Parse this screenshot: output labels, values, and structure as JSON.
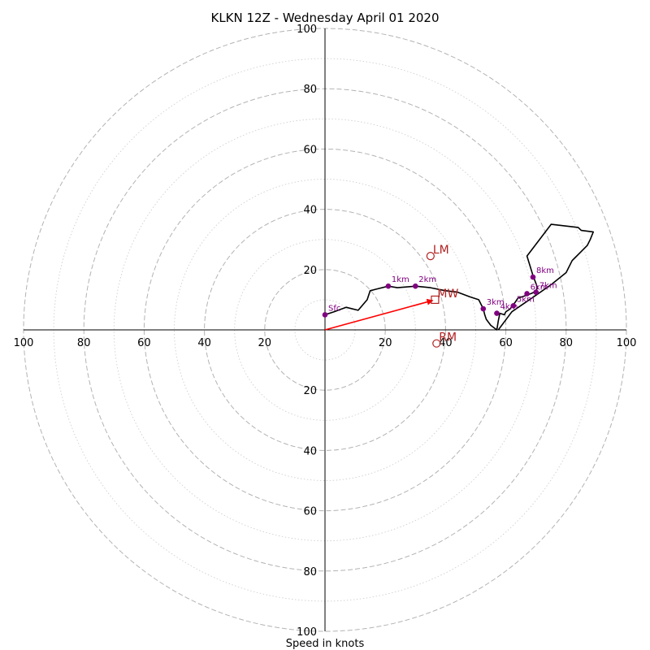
{
  "chart_data": {
    "type": "scatter",
    "title": "KLKN 12Z - Wednesday April 01 2020",
    "xlabel": "Speed in knots",
    "ylabel": "",
    "xlim": [
      -100,
      100
    ],
    "ylim": [
      -100,
      100
    ],
    "grid": true,
    "ring_major": [
      20,
      40,
      60,
      80,
      100
    ],
    "ring_minor": [
      10,
      30,
      50,
      70,
      90
    ],
    "x_tick_labels": [
      "100",
      "80",
      "60",
      "40",
      "20",
      "20",
      "40",
      "60",
      "80",
      "100"
    ],
    "y_tick_labels": [
      "100",
      "80",
      "60",
      "40",
      "20",
      "20",
      "40",
      "60",
      "80",
      "100"
    ],
    "colors": {
      "trace": "#000000",
      "height_points": "#800080",
      "motion": "#b22222",
      "mean_wind_vector": "#ff0000"
    },
    "hodograph_trace": [
      [
        0,
        5
      ],
      [
        3,
        6
      ],
      [
        7,
        7.5
      ],
      [
        11,
        6.5
      ],
      [
        14,
        10
      ],
      [
        15,
        13
      ],
      [
        17,
        13.5
      ],
      [
        21,
        14.5
      ],
      [
        24,
        14
      ],
      [
        30,
        14.5
      ],
      [
        35,
        14
      ],
      [
        40,
        13
      ],
      [
        44,
        12.5
      ],
      [
        48,
        11
      ],
      [
        51,
        10
      ],
      [
        52.5,
        7
      ],
      [
        53,
        5
      ],
      [
        53.5,
        3.5
      ],
      [
        55,
        1.5
      ],
      [
        57,
        0
      ],
      [
        57.5,
        3
      ],
      [
        58,
        5.5
      ],
      [
        59.5,
        5
      ],
      [
        60,
        6
      ],
      [
        61.5,
        7
      ],
      [
        62,
        8
      ],
      [
        63,
        9
      ],
      [
        64,
        10.5
      ],
      [
        67,
        11.5
      ],
      [
        69.5,
        12.5
      ],
      [
        70,
        13
      ],
      [
        70.5,
        14
      ],
      [
        69,
        18
      ],
      [
        67,
        24.5
      ],
      [
        75,
        35
      ],
      [
        84,
        34
      ],
      [
        85,
        33
      ],
      [
        89,
        32.5
      ],
      [
        88,
        30
      ],
      [
        87,
        28
      ],
      [
        85.5,
        26.5
      ],
      [
        84,
        25
      ],
      [
        83,
        24
      ],
      [
        82,
        23
      ],
      [
        80,
        19
      ],
      [
        75,
        15
      ],
      [
        70,
        11.5
      ],
      [
        62,
        6
      ],
      [
        57.5,
        0
      ]
    ],
    "height_points": [
      {
        "label": "Sfc",
        "x": 0,
        "y": 5
      },
      {
        "label": "1km",
        "x": 21,
        "y": 14.5
      },
      {
        "label": "2km",
        "x": 30,
        "y": 14.5
      },
      {
        "label": "3km",
        "x": 52.5,
        "y": 7
      },
      {
        "label": "4km",
        "x": 57,
        "y": 5.5
      },
      {
        "label": "5km",
        "x": 62.5,
        "y": 8
      },
      {
        "label": "6km",
        "x": 67,
        "y": 12
      },
      {
        "label": "7km",
        "x": 70,
        "y": 12.5
      },
      {
        "label": "8km",
        "x": 69,
        "y": 17.5
      }
    ],
    "storm_motion": [
      {
        "label": "LM",
        "x": 35,
        "y": 24.5,
        "marker": "circle"
      },
      {
        "label": "MW",
        "x": 36.5,
        "y": 10,
        "marker": "square"
      },
      {
        "label": "RM",
        "x": 37,
        "y": -4.5,
        "marker": "circle"
      }
    ],
    "mean_wind_vector": {
      "x": 36.5,
      "y": 10
    }
  }
}
